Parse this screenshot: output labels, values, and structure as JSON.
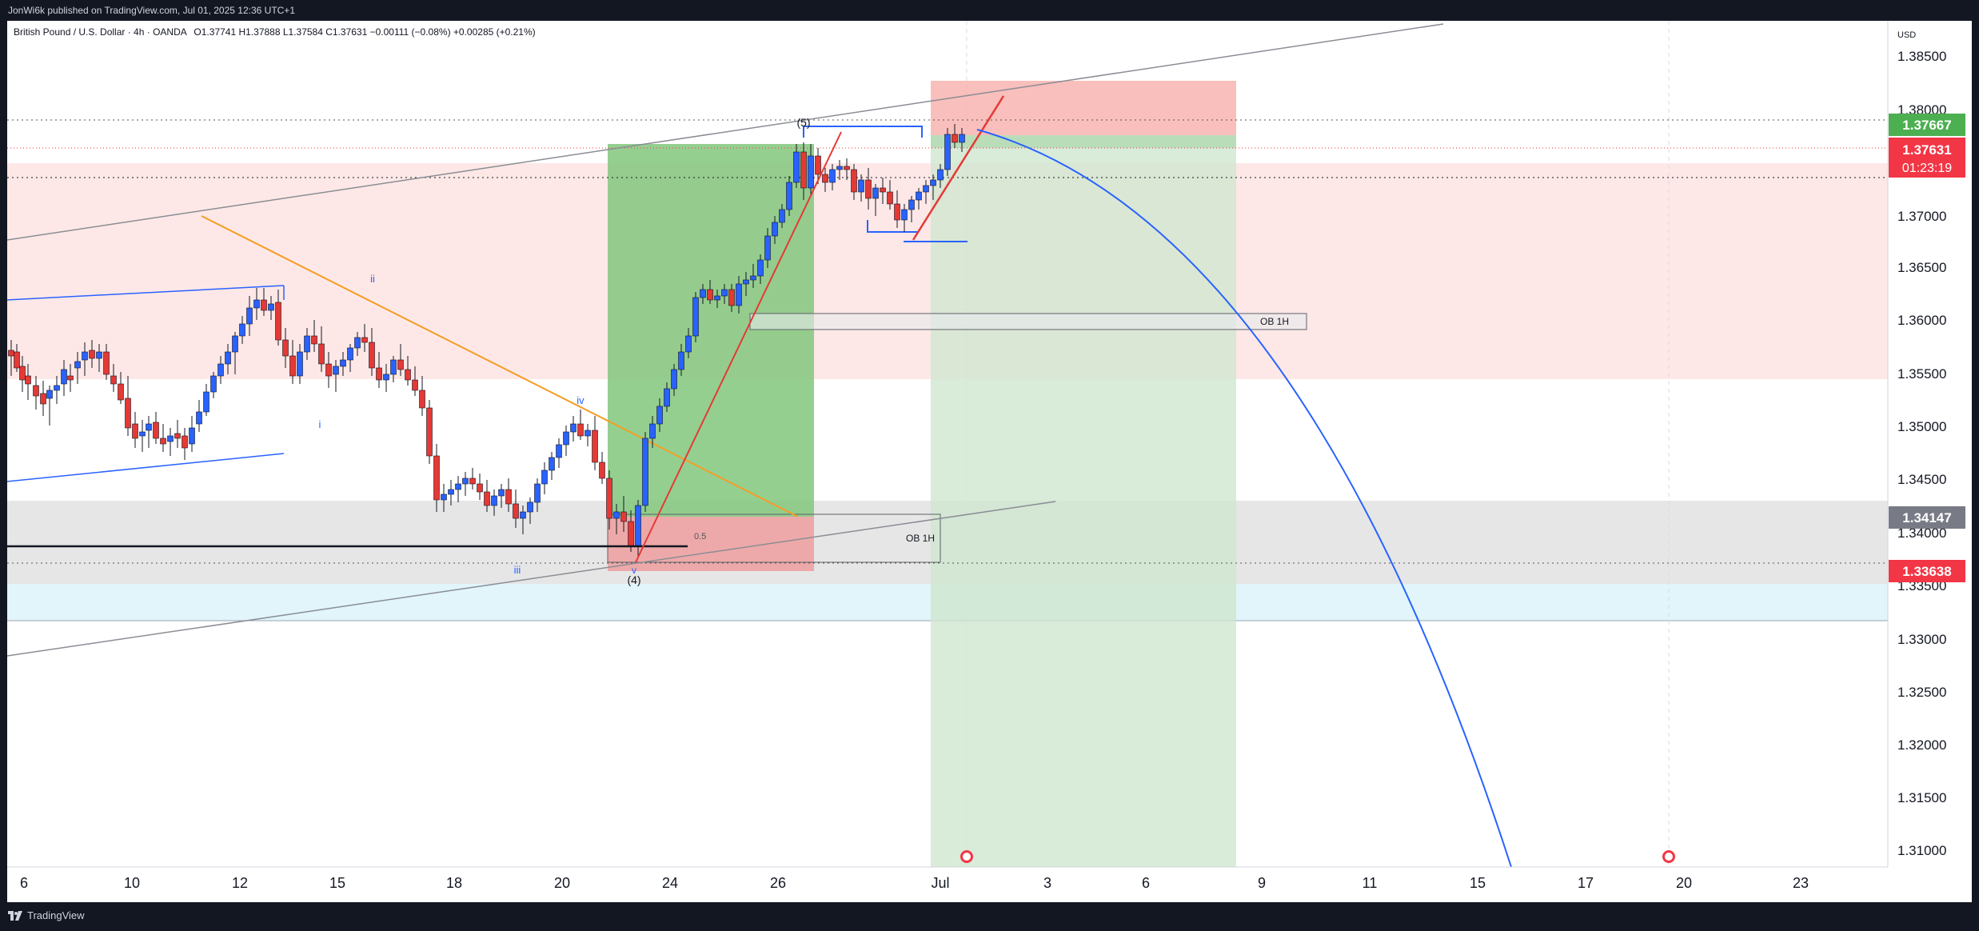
{
  "header": {
    "published": "JonWi6k published on TradingView.com, Jul 01, 2025 12:36 UTC+1"
  },
  "chart": {
    "symbol": "British Pound / U.S. Dollar · 4h · OANDA",
    "ohlc": "O1.37741 H1.37888 L1.37584 C1.37631 −0.00111 (−0.08%) +0.00285 (+0.21%)",
    "currency": "USD",
    "price_labels": [
      "1.38500",
      "1.38000",
      "1.37000",
      "1.36500",
      "1.36000",
      "1.35500",
      "1.35000",
      "1.34500",
      "1.34000",
      "1.33500",
      "1.33000",
      "1.32500",
      "1.32000",
      "1.31500",
      "1.31000"
    ],
    "badges": {
      "tp": "1.37667",
      "last": "1.37631",
      "countdown": "01:23:19",
      "ob": "1.34147",
      "sl": "1.33638"
    },
    "time_labels": [
      "6",
      "10",
      "12",
      "15",
      "18",
      "20",
      "24",
      "26",
      "Jul",
      "3",
      "6",
      "9",
      "11",
      "15",
      "17",
      "20",
      "23"
    ],
    "annotations": {
      "wave5": "(5)",
      "wave4": "(4)",
      "ii": "ii",
      "i": "i",
      "iii": "iii",
      "iv": "iv",
      "v": "v",
      "ob_upper": "OB 1H",
      "ob_lower": "OB 1H",
      "fib": "0.5"
    },
    "colors": {
      "up": "#2962ff",
      "down": "#e53935",
      "tp_badge": "#4caf50",
      "last_badge": "#f23645",
      "ob_badge": "#787b86"
    }
  },
  "footer": {
    "brand": "TradingView"
  }
}
